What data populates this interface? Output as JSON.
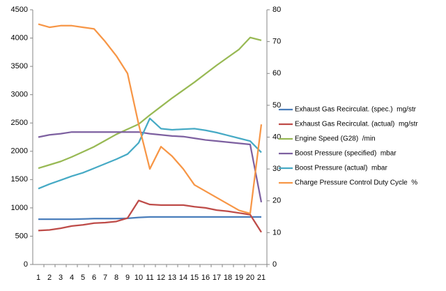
{
  "chart_data": {
    "type": "line",
    "categories": [
      "1",
      "2",
      "3",
      "4",
      "5",
      "6",
      "7",
      "8",
      "9",
      "10",
      "11",
      "12",
      "13",
      "14",
      "15",
      "16",
      "17",
      "18",
      "19",
      "20",
      "21"
    ],
    "ylim": [
      0,
      4500
    ],
    "yticks": [
      0,
      500,
      1000,
      1500,
      2000,
      2500,
      3000,
      3500,
      4000,
      4500
    ],
    "y2lim": [
      0,
      80
    ],
    "y2ticks": [
      0,
      10,
      20,
      30,
      40,
      50,
      60,
      70,
      80
    ],
    "grid": false,
    "legend": "right",
    "series": [
      {
        "name": "Exhaust Gas Recirculat. (spec.)  mg/str",
        "color": "#4a7ebb",
        "values": [
          800,
          800,
          800,
          800,
          805,
          810,
          810,
          810,
          815,
          830,
          840,
          840,
          840,
          840,
          840,
          840,
          840,
          840,
          840,
          840,
          840
        ]
      },
      {
        "name": "Exhaust Gas Recirculat. (actual)  mg/str",
        "color": "#be4b48",
        "values": [
          600,
          610,
          640,
          680,
          700,
          730,
          740,
          760,
          820,
          1130,
          1060,
          1050,
          1050,
          1050,
          1020,
          1000,
          960,
          940,
          910,
          880,
          570
        ]
      },
      {
        "name": "Engine Speed (G28)  /min",
        "color": "#98b954",
        "values": [
          1700,
          1760,
          1820,
          1900,
          1990,
          2080,
          2190,
          2300,
          2390,
          2480,
          2640,
          2790,
          2940,
          3080,
          3220,
          3370,
          3520,
          3660,
          3800,
          4010,
          3960
        ]
      },
      {
        "name": "Boost Pressure (specified)  mbar",
        "color": "#7d60a0",
        "values": [
          2250,
          2290,
          2310,
          2340,
          2340,
          2340,
          2340,
          2340,
          2340,
          2340,
          2310,
          2290,
          2270,
          2260,
          2230,
          2200,
          2180,
          2160,
          2140,
          2120,
          1100
        ]
      },
      {
        "name": "Boost Pressure (actual)  mbar",
        "color": "#46aac5",
        "values": [
          1340,
          1420,
          1490,
          1560,
          1620,
          1700,
          1780,
          1860,
          1950,
          2150,
          2580,
          2400,
          2380,
          2390,
          2400,
          2370,
          2330,
          2280,
          2230,
          2180,
          1980
        ]
      },
      {
        "name": "Charge Pressure Control Duty Cycle  %",
        "color": "#f79646",
        "axis": "y2",
        "values": [
          75.5,
          74.5,
          75,
          75,
          74.5,
          74,
          70,
          65.5,
          60,
          44,
          30,
          37,
          34,
          30,
          25,
          23,
          21,
          19,
          17,
          16,
          44
        ]
      }
    ]
  }
}
